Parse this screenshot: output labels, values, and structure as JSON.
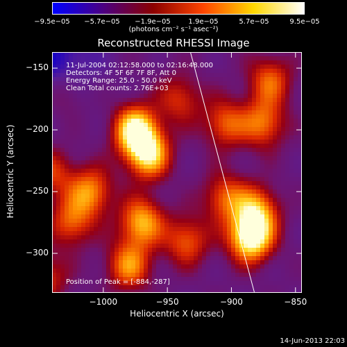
{
  "colorbar": {
    "ticks": [
      "−9.5e−05",
      "−5.7e−05",
      "−1.9e−05",
      "1.9e−05",
      "5.7e−05",
      "9.5e−05"
    ],
    "unit": "(photons cm⁻² s⁻¹ asec⁻²)",
    "colors": [
      "#0000ff",
      "#4b0082",
      "#8b0000",
      "#ff4500",
      "#ffd700",
      "#ffffff"
    ]
  },
  "header": {
    "title": "Reconstructed RHESSI Image"
  },
  "annotations": {
    "line1": "11-Jul-2004 02:12:58.000 to 02:16:48.000",
    "line2": "Detectors: 4F 5F 6F 7F 8F, Att 0",
    "line3": "Energy Range: 25.0 - 50.0 keV",
    "line4": "Clean    Total counts: 2.76E+03",
    "peak": "Position of Peak = [-884,-287]"
  },
  "axes": {
    "xlabel": "Heliocentric X (arcsec)",
    "ylabel": "Heliocentric Y (arcsec)",
    "xticks": [
      "−1000",
      "−950",
      "−900",
      "−850"
    ],
    "yticks": [
      "−150",
      "−200",
      "−250",
      "−300"
    ]
  },
  "chart_data": {
    "type": "heatmap",
    "title": "Reconstructed RHESSI Image",
    "xlabel": "Heliocentric X (arcsec)",
    "ylabel": "Heliocentric Y (arcsec)",
    "xlim": [
      -1040,
      -845
    ],
    "ylim": [
      -332,
      -137
    ],
    "xticks": [
      -1000,
      -950,
      -900,
      -850
    ],
    "yticks": [
      -150,
      -200,
      -250,
      -300
    ],
    "zlim": [
      -9.5e-05,
      9.5e-05
    ],
    "peak": [
      -884,
      -287
    ],
    "limb_line": [
      [
        -932,
        -137
      ],
      [
        -882,
        -332
      ]
    ],
    "blobs": [
      {
        "x": -975,
        "y": -200,
        "amp": 0.9
      },
      {
        "x": -965,
        "y": -220,
        "amp": 0.8
      },
      {
        "x": -1010,
        "y": -250,
        "amp": 0.6
      },
      {
        "x": -1025,
        "y": -275,
        "amp": 0.5
      },
      {
        "x": -970,
        "y": -275,
        "amp": 0.7
      },
      {
        "x": -980,
        "y": -310,
        "amp": 0.6
      },
      {
        "x": -905,
        "y": -195,
        "amp": 0.5
      },
      {
        "x": -875,
        "y": -195,
        "amp": 0.55
      },
      {
        "x": -905,
        "y": -255,
        "amp": 0.5
      },
      {
        "x": -880,
        "y": -265,
        "amp": 0.6
      },
      {
        "x": -885,
        "y": -287,
        "amp": 1.0
      },
      {
        "x": -935,
        "y": -290,
        "amp": 0.5
      },
      {
        "x": -1030,
        "y": -170,
        "amp": 0.3
      },
      {
        "x": -1040,
        "y": -235,
        "amp": 0.4
      },
      {
        "x": -1045,
        "y": -320,
        "amp": 0.4
      },
      {
        "x": -940,
        "y": -175,
        "amp": 0.4
      },
      {
        "x": -870,
        "y": -160,
        "amp": 0.5
      }
    ]
  },
  "footer": {
    "date": "14-Jun-2013 22:03"
  }
}
